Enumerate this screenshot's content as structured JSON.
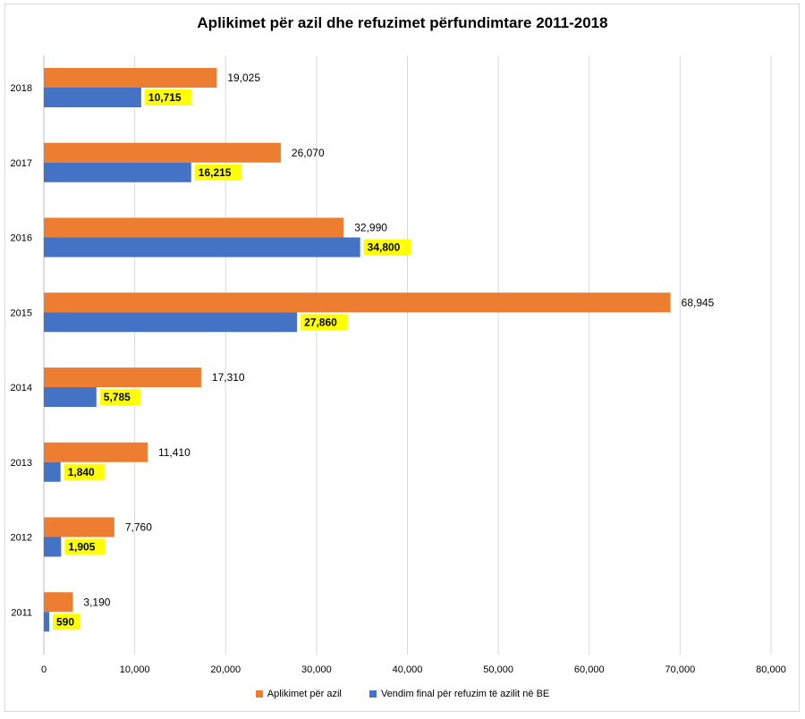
{
  "chart_data": {
    "type": "bar",
    "orientation": "horizontal",
    "title": "Aplikimet për azil dhe refuzimet përfundimtare 2011-2018",
    "categories": [
      "2011",
      "2012",
      "2013",
      "2014",
      "2015",
      "2016",
      "2017",
      "2018"
    ],
    "series": [
      {
        "name": "Aplikimet për azil",
        "color": "#ed7d31",
        "values": [
          3190,
          7760,
          11410,
          17310,
          68945,
          32990,
          26070,
          19025
        ],
        "labels": [
          "3,190",
          "7,760",
          "11,410",
          "17,310",
          "68,945",
          "32,990",
          "26,070",
          "19,025"
        ]
      },
      {
        "name": "Vendim final për refuzim të azilit në BE",
        "color": "#4472c4",
        "label_highlight": "#ffff00",
        "values": [
          590,
          1905,
          1840,
          5785,
          27860,
          34800,
          16215,
          10715
        ],
        "labels": [
          "590",
          "1,905",
          "1,840",
          "5,785",
          "27,860",
          "34,800",
          "16,215",
          "10,715"
        ]
      }
    ],
    "xlim": [
      0,
      80000
    ],
    "xticks": [
      0,
      10000,
      20000,
      30000,
      40000,
      50000,
      60000,
      70000,
      80000
    ],
    "xtick_labels": [
      "0",
      "10,000",
      "20,000",
      "30,000",
      "40,000",
      "50,000",
      "60,000",
      "70,000",
      "80,000"
    ],
    "grid": true,
    "legend_position": "bottom"
  }
}
